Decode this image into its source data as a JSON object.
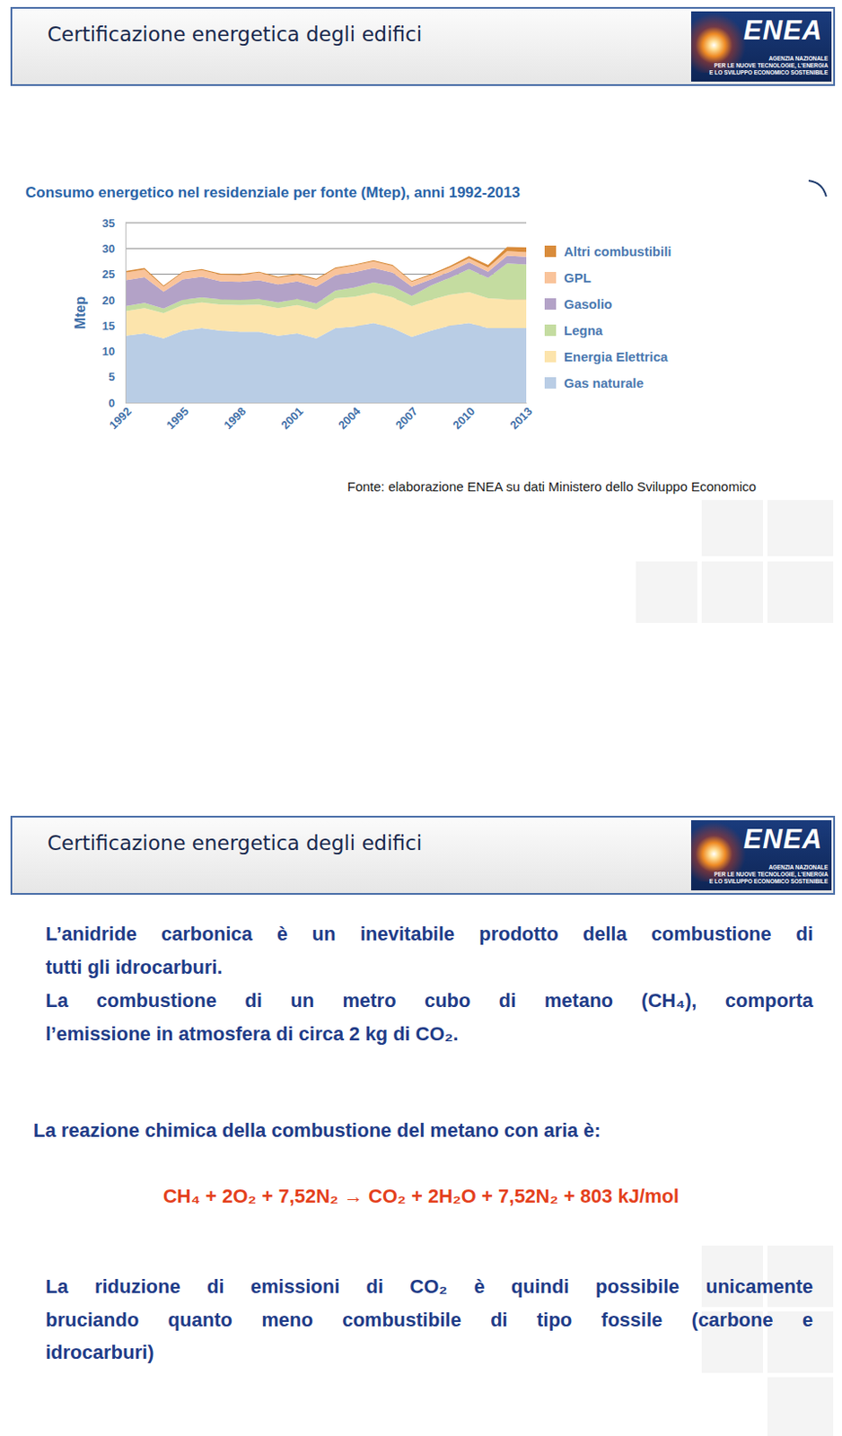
{
  "slides": [
    {
      "header": {
        "title": "Certificazione energetica degli edifici",
        "logo": {
          "name": "ENEA",
          "lines": [
            "AGENZIA NAZIONALE",
            "PER LE NUOVE TECNOLOGIE, L'ENERGIA",
            "E LO SVILUPPO ECONOMICO SOSTENIBILE"
          ]
        }
      },
      "source": "Fonte: elaborazione ENEA su dati Ministero dello Sviluppo Economico"
    },
    {
      "header": {
        "title": "Certificazione energetica degli edifici",
        "logo": {
          "name": "ENEA",
          "lines": [
            "AGENZIA NAZIONALE",
            "PER LE NUOVE TECNOLOGIE, L'ENERGIA",
            "E LO SVILUPPO ECONOMICO SOSTENIBILE"
          ]
        }
      },
      "paragraphs": [
        [
          "L’anidride carbonica è un inevitabile prodotto della combustione di",
          "tutti gli idrocarburi."
        ],
        [
          "La combustione di un metro cubo di metano (CH₄), comporta",
          "l’emissione in atmosfera di circa 2 kg di CO₂."
        ]
      ],
      "intro": "La reazione chimica della combustione del metano con aria è:",
      "equation": "CH₄ + 2O₂ + 7,52N₂ → CO₂ + 2H₂O + 7,52N₂ + 803 kJ/mol",
      "conclusion": [
        "La riduzione di emissioni di CO₂ è quindi possibile unicamente",
        "bruciando quanto meno combustibile di tipo fossile (carbone e",
        "idrocarburi)"
      ]
    }
  ],
  "chart_data": {
    "type": "area",
    "title": "Consumo energetico nel residenziale per fonte (Mtep), anni 1992-2013",
    "y_label": "Mtep",
    "stacked": true,
    "grid": true,
    "legend": "right",
    "x": [
      1992,
      1993,
      1994,
      1995,
      1996,
      1997,
      1998,
      1999,
      2000,
      2001,
      2002,
      2003,
      2004,
      2005,
      2006,
      2007,
      2008,
      2009,
      2010,
      2011,
      2012,
      2013
    ],
    "xlim": [
      1992,
      2013
    ],
    "xticks": [
      1992,
      1995,
      1998,
      2001,
      2004,
      2007,
      2010,
      2013
    ],
    "ylim": [
      0,
      35
    ],
    "yticks": [
      0,
      5,
      10,
      15,
      20,
      25,
      30,
      35
    ],
    "series": [
      {
        "name": "Gas naturale",
        "color": "#b9cde5",
        "values": [
          13,
          13.5,
          12.5,
          14,
          14.5,
          14,
          13.8,
          13.8,
          13,
          13.5,
          12.5,
          14.5,
          14.8,
          15.5,
          14.5,
          12.8,
          14,
          15,
          15.5,
          14.5,
          14.5,
          14.5
        ]
      },
      {
        "name": "Energia Elettrica",
        "color": "#fce4ac",
        "values": [
          4.8,
          4.9,
          4.9,
          5,
          5,
          5.1,
          5.2,
          5.3,
          5.4,
          5.5,
          5.6,
          5.8,
          5.8,
          5.9,
          6,
          6,
          6,
          6,
          6,
          5.8,
          5.6,
          5.6
        ]
      },
      {
        "name": "Legna",
        "color": "#c4dca0",
        "values": [
          1,
          1,
          0.9,
          1,
          1,
          1,
          1,
          1.1,
          1.1,
          1.2,
          1.2,
          1.5,
          1.8,
          2,
          2.2,
          2,
          2.8,
          3.3,
          4.5,
          4,
          7,
          6.8
        ]
      },
      {
        "name": "Gasolio",
        "color": "#b3a2c7",
        "values": [
          5,
          5,
          3.3,
          4,
          4,
          3.5,
          3.5,
          3.6,
          3.5,
          3.4,
          3.3,
          3,
          3,
          2.8,
          2.6,
          1.8,
          1.2,
          1.2,
          1.3,
          1.2,
          1.5,
          1.5
        ]
      },
      {
        "name": "GPL",
        "color": "#f9c39a",
        "values": [
          1.5,
          1.5,
          1,
          1.3,
          1.3,
          1.3,
          1.3,
          1.5,
          1.3,
          1.3,
          1.3,
          1.3,
          1.3,
          1.3,
          1.3,
          0.9,
          0.8,
          0.8,
          0.8,
          0.8,
          0.9,
          0.9
        ]
      },
      {
        "name": "Altri combustibili",
        "color": "#d98b3a",
        "values": [
          0.3,
          0.3,
          0.2,
          0.2,
          0.2,
          0.2,
          0.2,
          0.2,
          0.2,
          0.2,
          0.2,
          0.2,
          0.2,
          0.2,
          0.2,
          0.2,
          0.2,
          0.3,
          0.4,
          0.5,
          0.8,
          0.9
        ]
      }
    ]
  }
}
